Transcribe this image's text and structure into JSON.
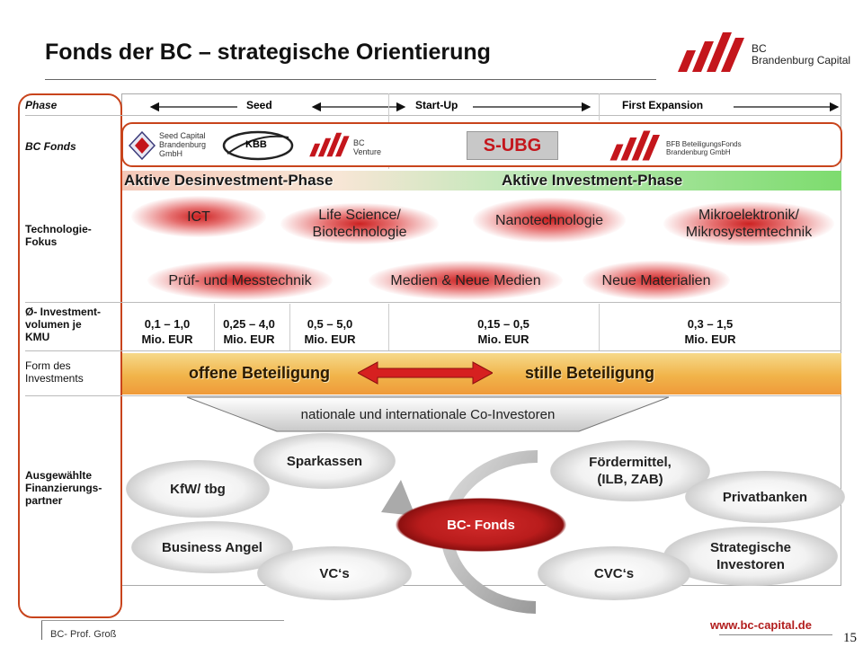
{
  "title": "Fonds der BC – strategische Orientierung",
  "logo": {
    "line1": "BC",
    "line2": "Brandenburg Capital"
  },
  "rows": {
    "phase": "Phase",
    "bc_fonds": "BC Fonds",
    "technologie": "Technologie-\nFokus",
    "investment": "Ø- Investment-\nvolumen je\nKMU",
    "form": "Form des\nInvestments",
    "partner": "Ausgewählte\nFinanzierungs-\npartner"
  },
  "phases": [
    "Seed",
    "Start-Up",
    "First Expansion"
  ],
  "fonds_logos": {
    "seed": [
      "Seed Capital",
      "Brandenburg",
      "GmbH"
    ],
    "kbb": "KBB",
    "bc_venture": [
      "BC",
      "Venture"
    ],
    "ubg": "S-UBG",
    "bfb": [
      "BFB BeteiligungsFonds",
      "Brandenburg GmbH"
    ]
  },
  "phase_bars": {
    "desinvest": "Aktive Desinvestment-Phase",
    "invest": "Aktive Investment-Phase"
  },
  "technologies": {
    "ict": "ICT",
    "life": "Life Science/\nBiotechnologie",
    "nano": "Nanotechnologie",
    "mikro": "Mikroelektronik/\nMikrosystemtechnik",
    "pruef": "Prüf- und Messtechnik",
    "medien": "Medien & Neue Medien",
    "material": "Neue Materialien"
  },
  "volumes": [
    "0,1 – 1,0\nMio. EUR",
    "0,25 – 4,0\nMio. EUR",
    "0,5 – 5,0\nMio. EUR",
    "0,15 – 0,5\nMio. EUR",
    "0,3 – 1,5\nMio. EUR"
  ],
  "forms": {
    "offen": "offene Beteiligung",
    "still": "stille Beteiligung"
  },
  "co_investors": "nationale und internationale Co-Investoren",
  "partners": {
    "sparkassen": "Sparkassen",
    "foerder": "Fördermittel,\n(ILB, ZAB)",
    "kfw": "KfW/ tbg",
    "privat": "Privatbanken",
    "bcfonds": "BC- Fonds",
    "angel": "Business Angel",
    "strat": "Strategische\nInvestoren",
    "vcs": "VC‘s",
    "cvcs": "CVC‘s"
  },
  "footer": {
    "author": "BC- Prof. Groß",
    "url": "www.bc-capital.de",
    "page": "15"
  },
  "colors": {
    "accent": "#c8441c",
    "brand_red": "#c4161c",
    "invest_green": "#7ddc6e",
    "form_orange": "#f1b44a"
  }
}
